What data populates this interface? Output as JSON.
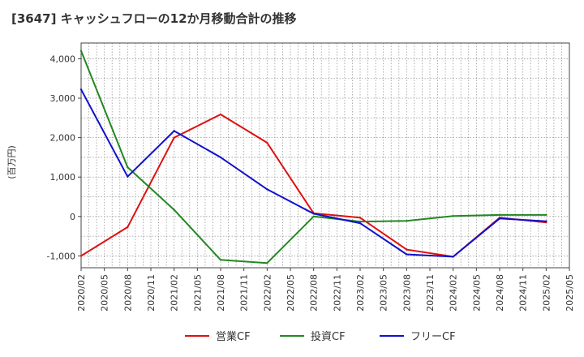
{
  "chart_data": {
    "type": "line",
    "title": "[3647]  キャッシュフローの12か月移動合計の推移",
    "ylabel": "(百万円)",
    "xlabel": "",
    "ylim": [
      -1300,
      4400
    ],
    "yticks": [
      -1000,
      0,
      1000,
      2000,
      3000,
      4000
    ],
    "ytick_labels": [
      "-1,000",
      "0",
      "1,000",
      "2,000",
      "3,000",
      "4,000"
    ],
    "x_categories": [
      "2020/02",
      "2020/05",
      "2020/08",
      "2020/11",
      "2021/02",
      "2021/05",
      "2021/08",
      "2021/11",
      "2022/02",
      "2022/05",
      "2022/08",
      "2022/11",
      "2023/02",
      "2023/05",
      "2023/08",
      "2023/11",
      "2024/02",
      "2024/05",
      "2024/08",
      "2024/11",
      "2025/02",
      "2025/05"
    ],
    "grid": true,
    "legend_position": "bottom",
    "series": [
      {
        "name": "営業CF",
        "color": "#dd1111",
        "points": [
          [
            0,
            -1000
          ],
          [
            2,
            -270
          ],
          [
            4,
            2000
          ],
          [
            6,
            2590
          ],
          [
            8,
            1870
          ],
          [
            10,
            80
          ],
          [
            12,
            -30
          ],
          [
            14,
            -840
          ],
          [
            16,
            -1020
          ],
          [
            18,
            -30
          ],
          [
            20,
            -150
          ]
        ]
      },
      {
        "name": "投資CF",
        "color": "#228822",
        "points": [
          [
            0,
            4200
          ],
          [
            2,
            1250
          ],
          [
            4,
            170
          ],
          [
            6,
            -1100
          ],
          [
            8,
            -1180
          ],
          [
            10,
            0
          ],
          [
            12,
            -130
          ],
          [
            14,
            -110
          ],
          [
            16,
            10
          ],
          [
            18,
            40
          ],
          [
            20,
            40
          ]
        ]
      },
      {
        "name": "フリーCF",
        "color": "#1111cc",
        "points": [
          [
            0,
            3220
          ],
          [
            2,
            1010
          ],
          [
            4,
            2170
          ],
          [
            6,
            1500
          ],
          [
            8,
            690
          ],
          [
            10,
            70
          ],
          [
            12,
            -170
          ],
          [
            14,
            -960
          ],
          [
            16,
            -1020
          ],
          [
            18,
            -50
          ],
          [
            20,
            -120
          ]
        ]
      }
    ]
  }
}
